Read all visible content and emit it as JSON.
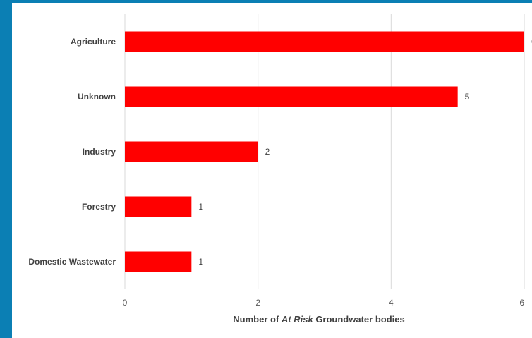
{
  "chart_data": {
    "type": "bar",
    "orientation": "horizontal",
    "categories": [
      "Agriculture",
      "Unknown",
      "Industry",
      "Forestry",
      "Domestic Wastewater"
    ],
    "values": [
      6,
      5,
      2,
      1,
      1
    ],
    "title": "",
    "xlabel_parts": [
      {
        "text": "Number of ",
        "italic": false
      },
      {
        "text": "At Risk",
        "italic": true
      },
      {
        "text": " Groundwater bodies",
        "italic": false
      }
    ],
    "ylabel": "",
    "xlim": [
      0,
      6
    ],
    "xticks": [
      "0",
      "2",
      "4",
      "6"
    ],
    "grid": true,
    "legend": "none",
    "bar_color": "#ff0000",
    "axis_color": "#d9d9d9",
    "frame_color": "#0b7fb4"
  }
}
